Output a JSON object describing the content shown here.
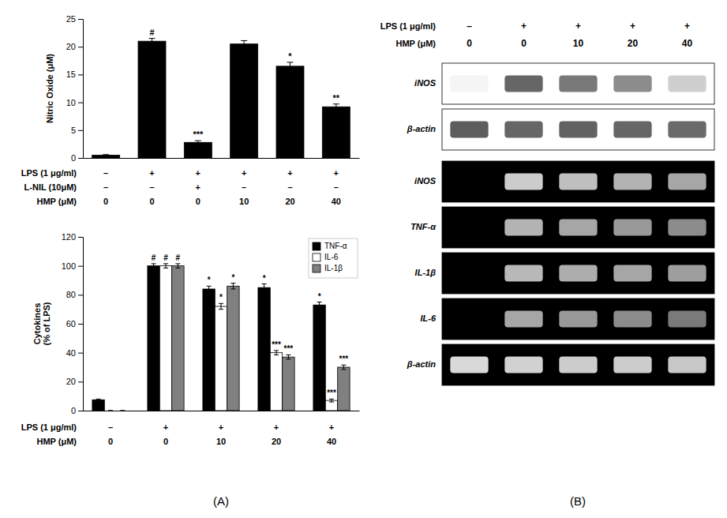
{
  "chart_data": [
    {
      "type": "bar",
      "panel_label": "(A)",
      "ylabel": "Nitric Oxide (μM)",
      "color": "#000000",
      "values": [
        0.5,
        21.0,
        2.8,
        20.5,
        16.5,
        9.2
      ],
      "errors": [
        0.1,
        0.5,
        0.3,
        0.6,
        0.7,
        0.5
      ],
      "annotations": [
        null,
        "#",
        "***",
        null,
        "*",
        "**"
      ],
      "category_rows": [
        {
          "name": "LPS (1 μg/ml)",
          "labels": [
            "–",
            "+",
            "+",
            "+",
            "+",
            "+"
          ]
        },
        {
          "name": "L-NIL (10μM)",
          "labels": [
            "–",
            "–",
            "+",
            "–",
            "–",
            "–"
          ]
        },
        {
          "name": "HMP (μM)",
          "labels": [
            "0",
            "0",
            "0",
            "10",
            "20",
            "40"
          ]
        }
      ],
      "ylim": [
        0,
        25
      ],
      "yticks": [
        0,
        5,
        10,
        15,
        20,
        25
      ]
    },
    {
      "type": "bar",
      "ylabel": "Cytokines\n(% of LPS)",
      "legend": "upper right",
      "series": [
        {
          "name": "TNF-α",
          "color": "#000000",
          "values": [
            7.5,
            100.0,
            84.0,
            85.0,
            73.0
          ],
          "errors": [
            0.5,
            1.5,
            2.0,
            2.5,
            2.0
          ],
          "annotations": [
            null,
            "#",
            "*",
            "*",
            "*"
          ]
        },
        {
          "name": "IL-6",
          "color": "#ffffff",
          "values": [
            0.0,
            100.0,
            72.0,
            40.0,
            7.0
          ],
          "errors": [
            0.0,
            1.5,
            2.0,
            1.5,
            1.0
          ],
          "annotations": [
            null,
            "#",
            "*",
            "***",
            "***"
          ]
        },
        {
          "name": "IL-1β",
          "color": "#808080",
          "values": [
            0.0,
            100.0,
            86.0,
            37.0,
            30.0
          ],
          "errors": [
            0.0,
            1.5,
            2.0,
            1.5,
            1.5
          ],
          "annotations": [
            null,
            "#",
            "*",
            "***",
            "***"
          ]
        }
      ],
      "category_rows": [
        {
          "name": "LPS (1 μg/ml)",
          "labels": [
            "–",
            "+",
            "+",
            "+",
            "+"
          ]
        },
        {
          "name": "HMP (μM)",
          "labels": [
            "0",
            "0",
            "10",
            "20",
            "40"
          ]
        }
      ],
      "ylim": [
        0,
        120
      ],
      "yticks": [
        0,
        20,
        40,
        60,
        80,
        100,
        120
      ]
    },
    {
      "type": "blot",
      "panel_label": "(B)",
      "column_rows": [
        {
          "name": "LPS (1 μg/ml)",
          "labels": [
            "–",
            "+",
            "+",
            "+",
            "+"
          ]
        },
        {
          "name": "HMP (μM)",
          "labels": [
            "0",
            "0",
            "10",
            "20",
            "40"
          ]
        }
      ],
      "zlim": [
        0,
        1
      ],
      "series": [
        {
          "name": "iNOS",
          "type": "western",
          "values": [
            0.05,
            0.8,
            0.7,
            0.6,
            0.25
          ]
        },
        {
          "name": "β-actin",
          "type": "western",
          "values": [
            0.85,
            0.8,
            0.82,
            0.8,
            0.78
          ]
        },
        {
          "name": "iNOS",
          "type": "rt-pcr",
          "values": [
            0.0,
            0.8,
            0.75,
            0.7,
            0.65
          ]
        },
        {
          "name": "TNF-α",
          "type": "rt-pcr",
          "values": [
            0.0,
            0.7,
            0.65,
            0.6,
            0.55
          ]
        },
        {
          "name": "IL-1β",
          "type": "rt-pcr",
          "values": [
            0.0,
            0.72,
            0.68,
            0.65,
            0.62
          ]
        },
        {
          "name": "IL-6",
          "type": "rt-pcr",
          "values": [
            0.0,
            0.65,
            0.6,
            0.55,
            0.48
          ]
        },
        {
          "name": "β-actin",
          "type": "rt-pcr",
          "values": [
            0.85,
            0.82,
            0.8,
            0.8,
            0.78
          ]
        }
      ]
    }
  ]
}
